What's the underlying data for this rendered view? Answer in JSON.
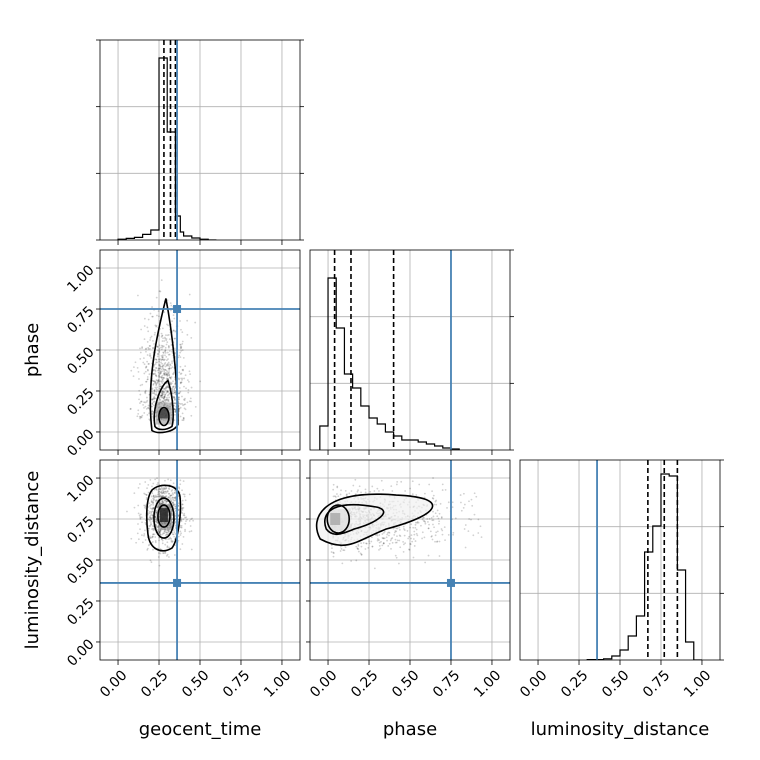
{
  "chart_data": {
    "type": "corner",
    "parameters": [
      "geocent_time",
      "phase",
      "luminosity_distance"
    ],
    "axis_labels": {
      "x": [
        "geocent_time",
        "phase",
        "luminosity_distance"
      ],
      "y": [
        "",
        "phase",
        "luminosity_distance"
      ]
    },
    "tick_values": [
      0.0,
      0.25,
      0.5,
      0.75,
      1.0
    ],
    "tick_labels": [
      "0.00",
      "0.25",
      "0.50",
      "0.75",
      "1.00"
    ],
    "axis_range": [
      -0.11,
      1.11
    ],
    "grid": true,
    "truths": {
      "geocent_time": 0.36,
      "phase": 0.75,
      "luminosity_distance": 0.36
    },
    "truth_color": "#4682b4",
    "quantile_lines": {
      "geocent_time": [
        0.28,
        0.32,
        0.35
      ],
      "phase": [
        0.04,
        0.14,
        0.4
      ],
      "luminosity_distance": [
        0.67,
        0.77,
        0.85
      ]
    },
    "histograms": {
      "geocent_time": {
        "bin_edges": [
          0.0,
          0.05,
          0.1,
          0.15,
          0.2,
          0.25,
          0.27,
          0.3,
          0.35,
          0.38,
          0.4,
          0.45,
          0.5,
          0.55,
          0.6
        ],
        "counts": [
          0.004,
          0.008,
          0.013,
          0.028,
          0.05,
          0.91,
          0.91,
          0.54,
          0.12,
          0.04,
          0.02,
          0.01,
          0.004,
          0.0
        ],
        "ymax": 1.0
      },
      "phase": {
        "bin_edges": [
          -0.05,
          0.0,
          0.05,
          0.1,
          0.15,
          0.2,
          0.25,
          0.3,
          0.35,
          0.4,
          0.45,
          0.5,
          0.55,
          0.6,
          0.65,
          0.7,
          0.75,
          0.8
        ],
        "counts": [
          0.12,
          0.86,
          0.61,
          0.38,
          0.31,
          0.22,
          0.16,
          0.13,
          0.09,
          0.07,
          0.05,
          0.05,
          0.04,
          0.03,
          0.02,
          0.01,
          0.005
        ],
        "ymax": 1.0
      },
      "luminosity_distance": {
        "bin_edges": [
          0.3,
          0.4,
          0.45,
          0.5,
          0.55,
          0.6,
          0.65,
          0.7,
          0.75,
          0.8,
          0.85,
          0.9,
          0.95,
          1.0
        ],
        "counts": [
          0.002,
          0.006,
          0.02,
          0.05,
          0.12,
          0.22,
          0.54,
          0.67,
          0.93,
          0.92,
          0.45,
          0.09,
          0.0
        ],
        "ymax": 1.0
      }
    },
    "pairs": [
      {
        "x": "geocent_time",
        "y": "phase",
        "mode": [
          0.28,
          0.07
        ],
        "spread": {
          "sx": 0.07,
          "sy": 0.3,
          "x_range": [
            0.05,
            0.65
          ],
          "y_range": [
            -0.05,
            1.0
          ]
        }
      },
      {
        "x": "geocent_time",
        "y": "luminosity_distance",
        "mode": [
          0.28,
          0.78
        ],
        "spread": {
          "sx": 0.06,
          "sy": 0.1,
          "x_range": [
            0.05,
            0.6
          ],
          "y_range": [
            0.2,
            1.0
          ]
        }
      },
      {
        "x": "phase",
        "y": "luminosity_distance",
        "mode": [
          0.05,
          0.75
        ],
        "spread": {
          "sx": 0.22,
          "sy": 0.1,
          "x_range": [
            -0.05,
            0.95
          ],
          "y_range": [
            0.2,
            1.0
          ]
        }
      }
    ],
    "colors": {
      "histogram": "#000000",
      "truth": "#4682b4",
      "density": "#000000"
    }
  }
}
